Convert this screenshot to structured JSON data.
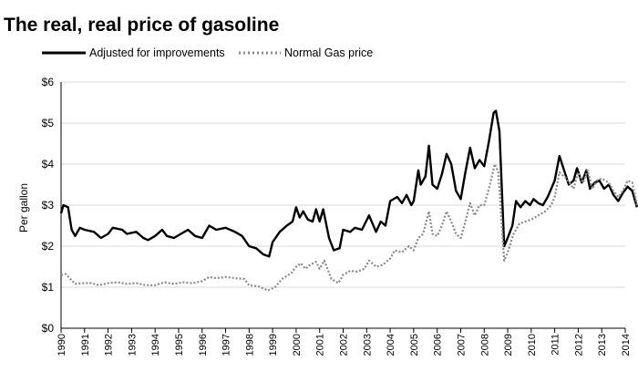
{
  "chart_data": {
    "type": "line",
    "title": "The real, real price of gasoline",
    "ylabel": "Per gallon",
    "xlabel": "",
    "xlim": [
      1990,
      2014
    ],
    "ylim": [
      0,
      6
    ],
    "yticks": [
      "$0",
      "$1",
      "$2",
      "$3",
      "$4",
      "$5",
      "$6"
    ],
    "xticks": [
      "1990",
      "1991",
      "1992",
      "1993",
      "1994",
      "1995",
      "1996",
      "1997",
      "1998",
      "1999",
      "2000",
      "2001",
      "2002",
      "2003",
      "2004",
      "2005",
      "2006",
      "2007",
      "2008",
      "2009",
      "2010",
      "2011",
      "2012",
      "2013",
      "2014"
    ],
    "grid": "horizontal",
    "legend_position": "top-left",
    "series": [
      {
        "name": "Adjusted for improvements",
        "style": "solid",
        "color": "#000000",
        "points": [
          [
            1990.0,
            2.8
          ],
          [
            1990.1,
            3.0
          ],
          [
            1990.3,
            2.95
          ],
          [
            1990.45,
            2.4
          ],
          [
            1990.6,
            2.25
          ],
          [
            1990.8,
            2.45
          ],
          [
            1991.0,
            2.4
          ],
          [
            1991.4,
            2.35
          ],
          [
            1991.7,
            2.2
          ],
          [
            1992.0,
            2.3
          ],
          [
            1992.2,
            2.45
          ],
          [
            1992.6,
            2.4
          ],
          [
            1992.8,
            2.3
          ],
          [
            1993.2,
            2.35
          ],
          [
            1993.5,
            2.2
          ],
          [
            1993.7,
            2.15
          ],
          [
            1994.0,
            2.25
          ],
          [
            1994.3,
            2.4
          ],
          [
            1994.5,
            2.25
          ],
          [
            1994.8,
            2.2
          ],
          [
            1995.1,
            2.3
          ],
          [
            1995.4,
            2.4
          ],
          [
            1995.7,
            2.25
          ],
          [
            1996.0,
            2.2
          ],
          [
            1996.3,
            2.5
          ],
          [
            1996.6,
            2.4
          ],
          [
            1997.0,
            2.45
          ],
          [
            1997.4,
            2.35
          ],
          [
            1997.7,
            2.25
          ],
          [
            1998.0,
            2.0
          ],
          [
            1998.3,
            1.95
          ],
          [
            1998.6,
            1.8
          ],
          [
            1998.85,
            1.75
          ],
          [
            1999.0,
            2.1
          ],
          [
            1999.3,
            2.35
          ],
          [
            1999.6,
            2.5
          ],
          [
            1999.85,
            2.6
          ],
          [
            2000.0,
            2.95
          ],
          [
            2000.15,
            2.7
          ],
          [
            2000.3,
            2.85
          ],
          [
            2000.5,
            2.65
          ],
          [
            2000.7,
            2.6
          ],
          [
            2000.85,
            2.9
          ],
          [
            2001.0,
            2.6
          ],
          [
            2001.15,
            2.9
          ],
          [
            2001.4,
            2.2
          ],
          [
            2001.6,
            1.9
          ],
          [
            2001.85,
            1.95
          ],
          [
            2002.0,
            2.4
          ],
          [
            2002.3,
            2.35
          ],
          [
            2002.5,
            2.45
          ],
          [
            2002.8,
            2.4
          ],
          [
            2003.1,
            2.75
          ],
          [
            2003.4,
            2.35
          ],
          [
            2003.6,
            2.6
          ],
          [
            2003.8,
            2.5
          ],
          [
            2004.0,
            3.1
          ],
          [
            2004.3,
            3.2
          ],
          [
            2004.5,
            3.05
          ],
          [
            2004.7,
            3.25
          ],
          [
            2004.9,
            3.0
          ],
          [
            2005.0,
            3.1
          ],
          [
            2005.2,
            3.85
          ],
          [
            2005.3,
            3.5
          ],
          [
            2005.5,
            3.7
          ],
          [
            2005.65,
            4.45
          ],
          [
            2005.8,
            3.5
          ],
          [
            2006.0,
            3.4
          ],
          [
            2006.2,
            3.75
          ],
          [
            2006.4,
            4.25
          ],
          [
            2006.6,
            4.0
          ],
          [
            2006.8,
            3.35
          ],
          [
            2007.0,
            3.15
          ],
          [
            2007.2,
            3.8
          ],
          [
            2007.4,
            4.4
          ],
          [
            2007.6,
            3.9
          ],
          [
            2007.8,
            4.1
          ],
          [
            2008.0,
            3.95
          ],
          [
            2008.2,
            4.55
          ],
          [
            2008.4,
            5.25
          ],
          [
            2008.5,
            5.3
          ],
          [
            2008.65,
            4.8
          ],
          [
            2008.85,
            2.0
          ],
          [
            2009.0,
            2.2
          ],
          [
            2009.2,
            2.5
          ],
          [
            2009.35,
            3.1
          ],
          [
            2009.55,
            2.95
          ],
          [
            2009.75,
            3.1
          ],
          [
            2009.95,
            3.0
          ],
          [
            2010.1,
            3.15
          ],
          [
            2010.3,
            3.05
          ],
          [
            2010.5,
            3.0
          ],
          [
            2010.7,
            3.2
          ],
          [
            2010.85,
            3.4
          ],
          [
            2011.0,
            3.6
          ],
          [
            2011.2,
            4.2
          ],
          [
            2011.4,
            3.85
          ],
          [
            2011.6,
            3.5
          ],
          [
            2011.8,
            3.6
          ],
          [
            2011.95,
            3.9
          ],
          [
            2012.15,
            3.55
          ],
          [
            2012.35,
            3.85
          ],
          [
            2012.5,
            3.4
          ],
          [
            2012.7,
            3.55
          ],
          [
            2012.9,
            3.6
          ],
          [
            2013.1,
            3.4
          ],
          [
            2013.3,
            3.5
          ],
          [
            2013.5,
            3.25
          ],
          [
            2013.7,
            3.1
          ],
          [
            2013.9,
            3.3
          ],
          [
            2014.1,
            3.45
          ],
          [
            2014.3,
            3.35
          ],
          [
            2014.5,
            2.95
          ]
        ]
      },
      {
        "name": "Normal Gas price",
        "style": "dotted",
        "color": "#8a8a8a",
        "points": [
          [
            1990.0,
            1.3
          ],
          [
            1990.2,
            1.32
          ],
          [
            1990.4,
            1.2
          ],
          [
            1990.6,
            1.08
          ],
          [
            1991.0,
            1.1
          ],
          [
            1991.3,
            1.1
          ],
          [
            1991.6,
            1.05
          ],
          [
            1992.0,
            1.1
          ],
          [
            1992.4,
            1.12
          ],
          [
            1992.8,
            1.08
          ],
          [
            1993.2,
            1.1
          ],
          [
            1993.6,
            1.05
          ],
          [
            1994.0,
            1.05
          ],
          [
            1994.4,
            1.12
          ],
          [
            1994.8,
            1.08
          ],
          [
            1995.2,
            1.12
          ],
          [
            1995.6,
            1.1
          ],
          [
            1996.0,
            1.15
          ],
          [
            1996.3,
            1.25
          ],
          [
            1996.6,
            1.22
          ],
          [
            1997.0,
            1.25
          ],
          [
            1997.4,
            1.22
          ],
          [
            1997.8,
            1.2
          ],
          [
            1998.0,
            1.05
          ],
          [
            1998.4,
            1.02
          ],
          [
            1998.8,
            0.92
          ],
          [
            1999.1,
            1.0
          ],
          [
            1999.4,
            1.2
          ],
          [
            1999.8,
            1.35
          ],
          [
            2000.0,
            1.5
          ],
          [
            2000.2,
            1.58
          ],
          [
            2000.4,
            1.45
          ],
          [
            2000.6,
            1.55
          ],
          [
            2000.85,
            1.62
          ],
          [
            2001.0,
            1.45
          ],
          [
            2001.2,
            1.65
          ],
          [
            2001.5,
            1.2
          ],
          [
            2001.8,
            1.1
          ],
          [
            2002.0,
            1.3
          ],
          [
            2002.3,
            1.4
          ],
          [
            2002.6,
            1.38
          ],
          [
            2002.9,
            1.45
          ],
          [
            2003.1,
            1.65
          ],
          [
            2003.4,
            1.5
          ],
          [
            2003.7,
            1.55
          ],
          [
            2004.0,
            1.7
          ],
          [
            2004.2,
            1.9
          ],
          [
            2004.5,
            1.85
          ],
          [
            2004.8,
            2.0
          ],
          [
            2005.0,
            1.9
          ],
          [
            2005.2,
            2.2
          ],
          [
            2005.4,
            2.3
          ],
          [
            2005.65,
            2.85
          ],
          [
            2005.8,
            2.3
          ],
          [
            2006.0,
            2.25
          ],
          [
            2006.2,
            2.5
          ],
          [
            2006.4,
            2.85
          ],
          [
            2006.6,
            2.6
          ],
          [
            2006.8,
            2.3
          ],
          [
            2007.0,
            2.2
          ],
          [
            2007.2,
            2.6
          ],
          [
            2007.4,
            3.05
          ],
          [
            2007.6,
            2.75
          ],
          [
            2007.8,
            3.0
          ],
          [
            2008.0,
            3.0
          ],
          [
            2008.2,
            3.4
          ],
          [
            2008.45,
            4.0
          ],
          [
            2008.6,
            3.8
          ],
          [
            2008.85,
            1.65
          ],
          [
            2009.0,
            1.85
          ],
          [
            2009.25,
            2.3
          ],
          [
            2009.5,
            2.55
          ],
          [
            2009.75,
            2.6
          ],
          [
            2010.0,
            2.65
          ],
          [
            2010.3,
            2.75
          ],
          [
            2010.6,
            2.85
          ],
          [
            2010.85,
            3.0
          ],
          [
            2011.0,
            3.2
          ],
          [
            2011.2,
            3.8
          ],
          [
            2011.5,
            3.65
          ],
          [
            2011.8,
            3.4
          ],
          [
            2012.0,
            3.8
          ],
          [
            2012.2,
            3.55
          ],
          [
            2012.4,
            3.85
          ],
          [
            2012.6,
            3.4
          ],
          [
            2012.8,
            3.6
          ],
          [
            2013.0,
            3.65
          ],
          [
            2013.3,
            3.55
          ],
          [
            2013.5,
            3.35
          ],
          [
            2013.7,
            3.2
          ],
          [
            2013.9,
            3.35
          ],
          [
            2014.1,
            3.6
          ],
          [
            2014.3,
            3.55
          ],
          [
            2014.5,
            3.0
          ]
        ]
      }
    ]
  }
}
